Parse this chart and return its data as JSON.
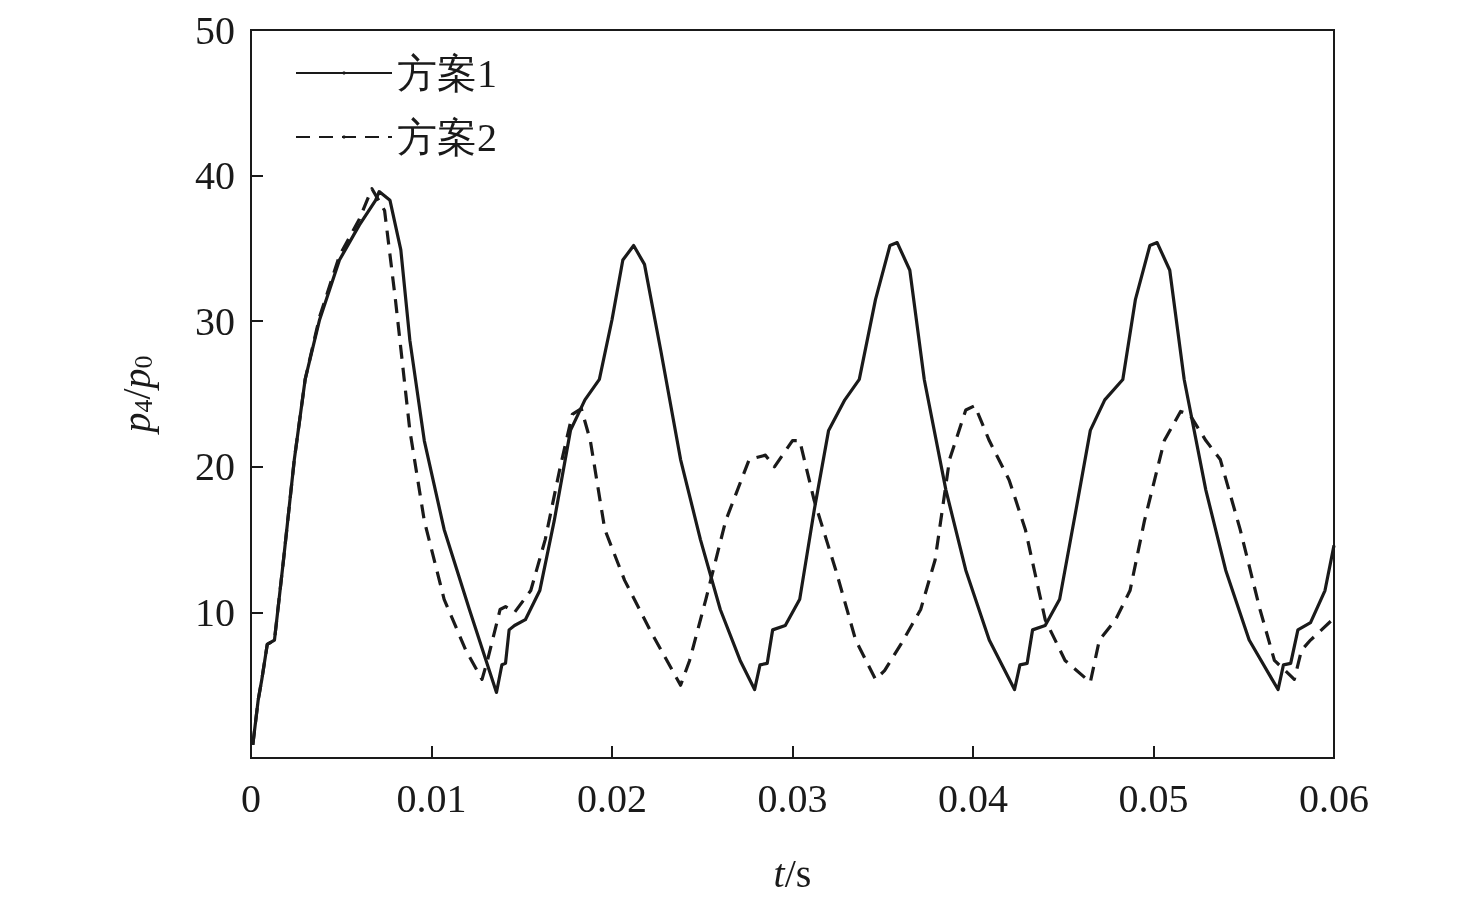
{
  "chart_data": {
    "type": "line",
    "xlabel": "t/s",
    "ylabel": "p$_{4}$/p$_{0}$",
    "xlim": [
      0,
      0.06
    ],
    "xticks": [
      0,
      0.01,
      0.02,
      0.03,
      0.04,
      0.05,
      0.06
    ],
    "ylim": [
      0,
      50
    ],
    "yticks": [
      {
        "value": 0,
        "label": null
      },
      10,
      20,
      30,
      40,
      50
    ],
    "grid": false,
    "legend": "top left",
    "marker": "none",
    "series": [
      {
        "name": "方案1",
        "color": "#1a1a1a",
        "line_style": "solid",
        "x": [
          0.0001,
          0.0004,
          0.0006,
          0.0009,
          0.0013,
          0.0018,
          0.0024,
          0.003,
          0.0038,
          0.0049,
          0.006,
          0.0069,
          0.0071,
          0.0077,
          0.0083,
          0.0088,
          0.0096,
          0.0107,
          0.0121,
          0.0136,
          0.0139,
          0.0141,
          0.0143,
          0.0146,
          0.0152,
          0.016,
          0.0168,
          0.0177,
          0.0185,
          0.0193,
          0.02,
          0.0206,
          0.0212,
          0.0218,
          0.0227,
          0.0238,
          0.0249,
          0.026,
          0.0271,
          0.0279,
          0.0282,
          0.0286,
          0.0289,
          0.0296,
          0.0304,
          0.0312,
          0.032,
          0.0329,
          0.0337,
          0.0346,
          0.0354,
          0.0358,
          0.0365,
          0.0373,
          0.0385,
          0.0396,
          0.0409,
          0.0423,
          0.0426,
          0.043,
          0.0433,
          0.044,
          0.0448,
          0.0457,
          0.0465,
          0.0473,
          0.0483,
          0.049,
          0.0498,
          0.0502,
          0.0509,
          0.0517,
          0.0529,
          0.054,
          0.0553,
          0.0569,
          0.0572,
          0.0576,
          0.058,
          0.0587,
          0.0595,
          0.06
        ],
        "values": [
          0.9,
          4.0,
          5.4,
          7.8,
          8.1,
          13.6,
          20.5,
          26,
          30.1,
          34.2,
          36.6,
          38.3,
          38.9,
          38.3,
          34.9,
          28.7,
          21.8,
          15.7,
          10.2,
          4.5,
          6.4,
          6.5,
          8.8,
          9.1,
          9.5,
          11.5,
          16.3,
          22.5,
          24.6,
          26,
          30.1,
          34.2,
          35.2,
          33.9,
          28,
          20.5,
          15,
          10.2,
          6.7,
          4.7,
          6.4,
          6.5,
          8.8,
          9.1,
          10.9,
          17,
          22.5,
          24.6,
          26,
          31.5,
          35.2,
          35.4,
          33.5,
          26,
          18.4,
          12.9,
          8.1,
          4.7,
          6.4,
          6.5,
          8.8,
          9.1,
          10.9,
          17,
          22.5,
          24.6,
          26,
          31.5,
          35.2,
          35.4,
          33.5,
          26,
          18.4,
          12.9,
          8.1,
          4.7,
          6.4,
          6.5,
          8.8,
          9.3,
          11.5,
          14.6
        ]
      },
      {
        "name": "方案2",
        "color": "#1a1a1a",
        "line_style": "dashed",
        "x": [
          0.0001,
          0.0004,
          0.0006,
          0.0009,
          0.0013,
          0.0018,
          0.0024,
          0.003,
          0.0038,
          0.0049,
          0.006,
          0.0067,
          0.0074,
          0.008,
          0.0088,
          0.0096,
          0.0107,
          0.0119,
          0.0128,
          0.0131,
          0.0138,
          0.0141,
          0.0146,
          0.0155,
          0.0163,
          0.0171,
          0.0178,
          0.0183,
          0.0188,
          0.0196,
          0.0207,
          0.0221,
          0.0238,
          0.0243,
          0.0252,
          0.0263,
          0.0276,
          0.0285,
          0.029,
          0.03,
          0.0304,
          0.0312,
          0.0324,
          0.0335,
          0.0346,
          0.0351,
          0.036,
          0.0371,
          0.0379,
          0.0387,
          0.0396,
          0.0401,
          0.0409,
          0.042,
          0.0429,
          0.044,
          0.0451,
          0.0465,
          0.047,
          0.0479,
          0.0487,
          0.0495,
          0.0506,
          0.0515,
          0.052,
          0.0529,
          0.0537,
          0.0548,
          0.0559,
          0.0567,
          0.0573,
          0.0578,
          0.0582,
          0.0587,
          0.06
        ],
        "values": [
          0.9,
          4.0,
          5.4,
          7.8,
          8.1,
          13.6,
          20.5,
          26,
          30.3,
          34.5,
          37,
          39.1,
          37.6,
          31.5,
          22.5,
          16.3,
          10.9,
          7.4,
          5.4,
          6.7,
          10.2,
          10.4,
          10,
          11.5,
          15,
          19.8,
          23.6,
          24,
          21.8,
          15.7,
          12.2,
          8.8,
          5,
          6.7,
          10.9,
          16.3,
          20.5,
          20.8,
          20,
          21.8,
          21.8,
          17.7,
          12.9,
          8.1,
          5.4,
          6,
          7.8,
          10.2,
          13.6,
          20.5,
          23.9,
          24.2,
          21.8,
          19.1,
          15.7,
          9.5,
          6.7,
          5.2,
          8.1,
          9.5,
          11.5,
          16.3,
          21.8,
          23.8,
          23.6,
          21.8,
          20.5,
          15.7,
          10.2,
          6.7,
          6,
          5.4,
          7.4,
          8.1,
          9.6
        ]
      }
    ]
  }
}
